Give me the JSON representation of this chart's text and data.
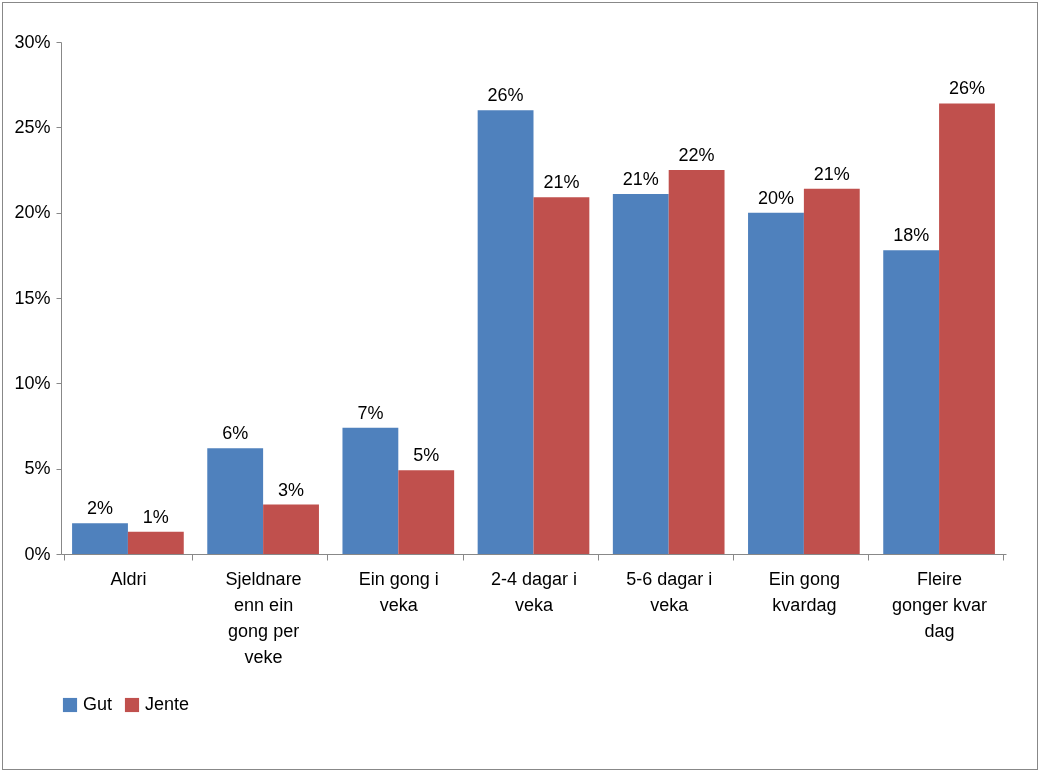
{
  "chart_data": {
    "type": "bar",
    "categories": [
      "Aldri",
      "Sjeldnare enn ein gong per veke",
      "Ein gong i veka",
      "2-4 dagar i veka",
      "5-6 dagar i veka",
      "Ein gong kvardag",
      "Fleire gonger kvar dag"
    ],
    "series": [
      {
        "name": "Gut",
        "color": "#4f81bd",
        "values": [
          1.8,
          6.2,
          7.4,
          26.0,
          21.1,
          20.0,
          17.8
        ],
        "value_labels": [
          "2%",
          "6%",
          "7%",
          "26%",
          "21%",
          "20%",
          "18%"
        ]
      },
      {
        "name": "Jente",
        "color": "#c0504d",
        "values": [
          1.3,
          2.9,
          4.9,
          20.9,
          22.5,
          21.4,
          26.4
        ],
        "value_labels": [
          "1%",
          "3%",
          "5%",
          "21%",
          "22%",
          "21%",
          "26%"
        ]
      }
    ],
    "ylim": [
      0,
      30
    ],
    "yticks": [
      {
        "value": 0,
        "label": "0%"
      },
      {
        "value": 5,
        "label": "5%"
      },
      {
        "value": 10,
        "label": "10%"
      },
      {
        "value": 15,
        "label": "15%"
      },
      {
        "value": 20,
        "label": "20%"
      },
      {
        "value": 25,
        "label": "25%"
      },
      {
        "value": 30,
        "label": "30%"
      }
    ],
    "legend": "bottom"
  }
}
